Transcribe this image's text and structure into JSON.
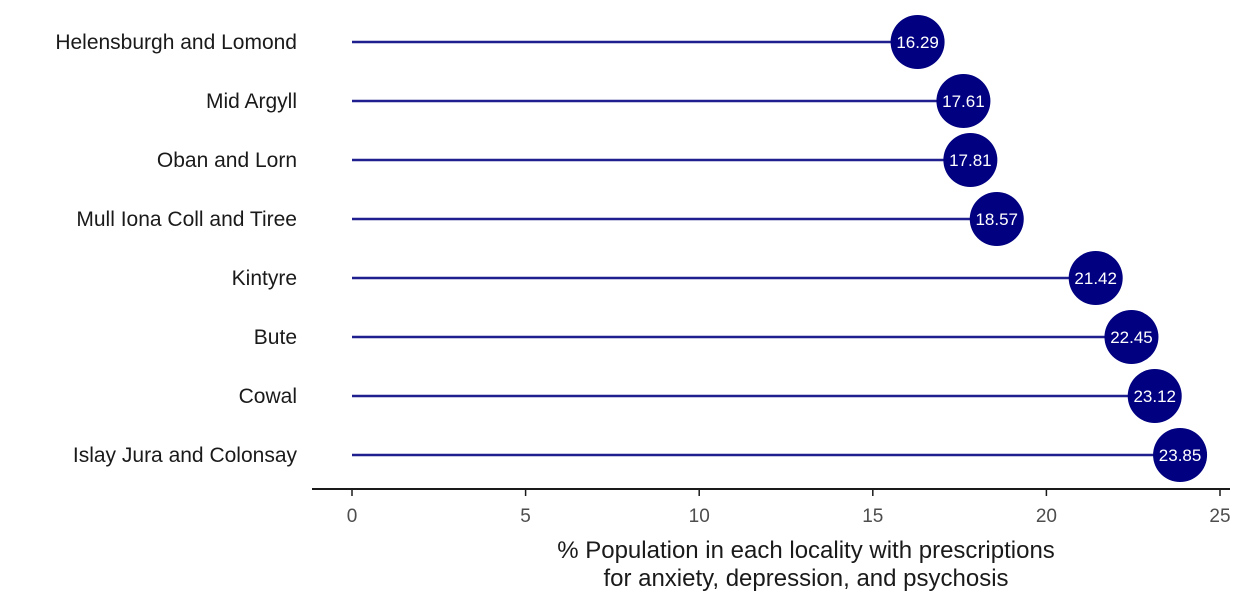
{
  "chart_data": {
    "type": "lollipop",
    "orientation": "horizontal",
    "categories": [
      "Helensburgh and Lomond",
      "Mid Argyll",
      "Oban and Lorn",
      "Mull Iona Coll and Tiree",
      "Kintyre",
      "Bute",
      "Cowal",
      "Islay Jura and Colonsay"
    ],
    "values": [
      16.29,
      17.61,
      17.81,
      18.57,
      21.42,
      22.45,
      23.12,
      23.85
    ],
    "value_labels": [
      "16.29",
      "17.61",
      "17.81",
      "18.57",
      "21.42",
      "22.45",
      "23.12",
      "23.85"
    ],
    "highlight_category": "Kintyre",
    "xlabel_lines": [
      "% Population in each locality with prescriptions",
      "for anxiety, depression, and psychosis"
    ],
    "xlim": [
      0,
      25
    ],
    "xticks": [
      0,
      5,
      10,
      15,
      20,
      25
    ],
    "xtick_labels": [
      "0",
      "5",
      "10",
      "15",
      "20",
      "25"
    ],
    "grid": false,
    "colors": {
      "line": "#1f1f8f",
      "point": "#000080",
      "highlight_label": "#e41a1c",
      "label": "#1a1a1a",
      "value_label": "#ffffff",
      "axis": "#1a1a1a"
    }
  }
}
